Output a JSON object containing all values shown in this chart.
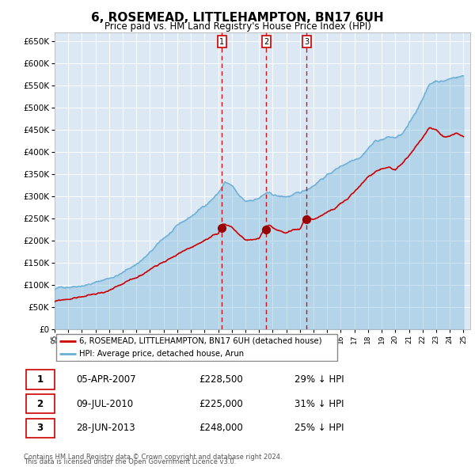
{
  "title": "6, ROSEMEAD, LITTLEHAMPTON, BN17 6UH",
  "subtitle": "Price paid vs. HM Land Registry's House Price Index (HPI)",
  "title_fontsize": 11,
  "subtitle_fontsize": 8.5,
  "bg_color": "#dce9f5",
  "grid_color": "#ffffff",
  "hpi_color": "#6aaed6",
  "hpi_fill_color": "#a8cce4",
  "price_color": "#cc0000",
  "marker_color": "#990000",
  "dashed_color": "#cc0000",
  "ylim": [
    0,
    670000
  ],
  "ytick_step": 50000,
  "xlim_start": 1995,
  "xlim_end": 2025.5,
  "transactions": [
    {
      "label": "1",
      "date": "05-APR-2007",
      "price": 228500,
      "pct": "29% ↓ HPI",
      "x_year": 2007.27
    },
    {
      "label": "2",
      "date": "09-JUL-2010",
      "price": 225000,
      "pct": "31% ↓ HPI",
      "x_year": 2010.52
    },
    {
      "label": "3",
      "date": "28-JUN-2013",
      "price": 248000,
      "pct": "25% ↓ HPI",
      "x_year": 2013.49
    }
  ],
  "legend_line1": "6, ROSEMEAD, LITTLEHAMPTON, BN17 6UH (detached house)",
  "legend_line2": "HPI: Average price, detached house, Arun",
  "footer1": "Contains HM Land Registry data © Crown copyright and database right 2024.",
  "footer2": "This data is licensed under the Open Government Licence v3.0."
}
